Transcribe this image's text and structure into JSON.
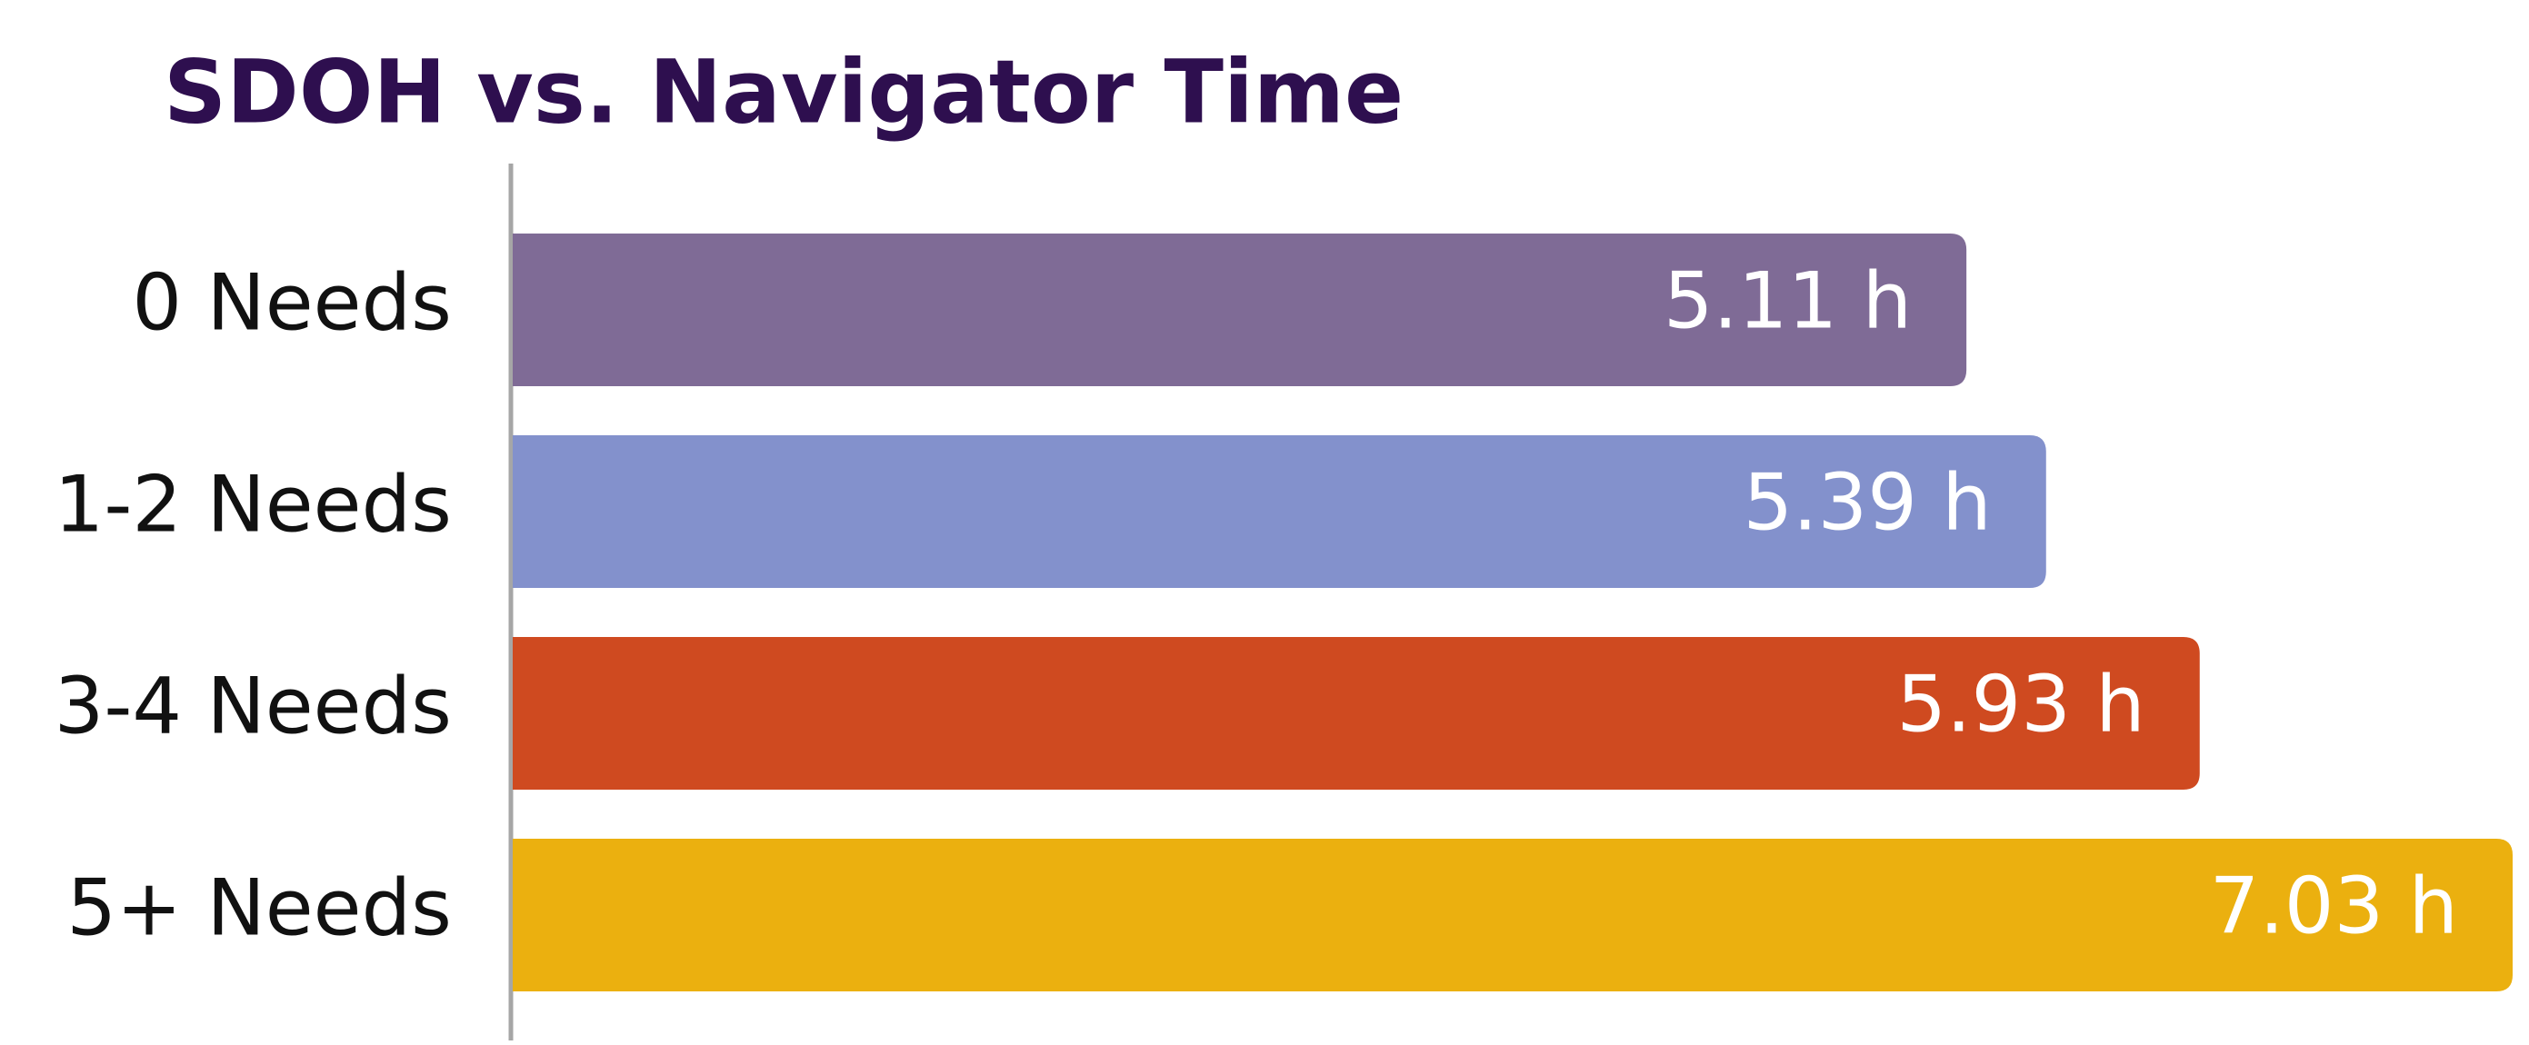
{
  "chart_data": {
    "type": "bar",
    "orientation": "horizontal",
    "title": "SDOH vs. Navigator Time",
    "title_color": "#2e0f4f",
    "categories": [
      "0 Needs",
      "1-2 Needs",
      "3-4 Needs",
      "5+ Needs"
    ],
    "values": [
      5.11,
      5.39,
      5.93,
      7.03
    ],
    "value_labels": [
      "5.11 h",
      "5.39 h",
      "5.93 h",
      "7.03 h"
    ],
    "colors": [
      "#7f6b96",
      "#8391cc",
      "#cf4a20",
      "#ebb00f"
    ]
  }
}
